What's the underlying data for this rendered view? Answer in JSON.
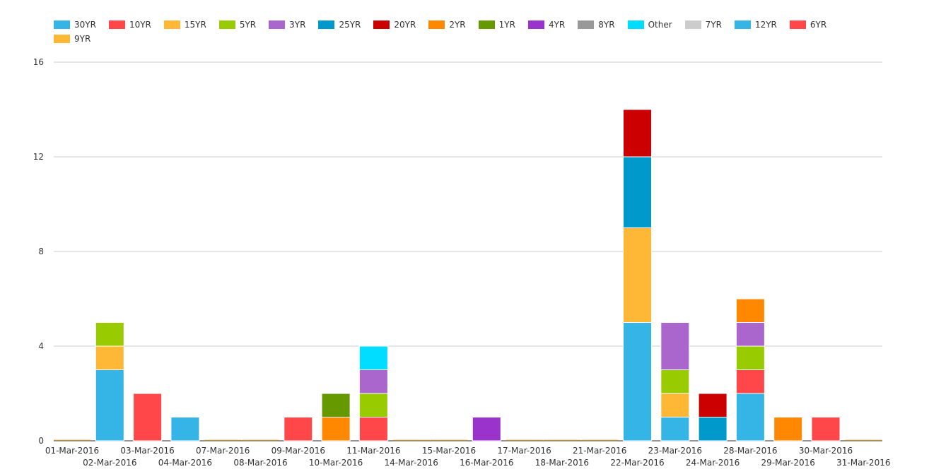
{
  "chart_data": {
    "type": "bar",
    "stacked": true,
    "legend_position": "top-left",
    "grid": true,
    "ylim": [
      0,
      16
    ],
    "y_ticks": [
      0,
      4,
      8,
      12,
      16
    ],
    "categories": [
      "01-Mar-2016",
      "02-Mar-2016",
      "03-Mar-2016",
      "04-Mar-2016",
      "07-Mar-2016",
      "08-Mar-2016",
      "09-Mar-2016",
      "10-Mar-2016",
      "11-Mar-2016",
      "14-Mar-2016",
      "15-Mar-2016",
      "16-Mar-2016",
      "17-Mar-2016",
      "18-Mar-2016",
      "21-Mar-2016",
      "22-Mar-2016",
      "23-Mar-2016",
      "24-Mar-2016",
      "28-Mar-2016",
      "29-Mar-2016",
      "30-Mar-2016",
      "31-Mar-2016"
    ],
    "series": [
      {
        "name": "30YR",
        "color": "#35b4e6",
        "values": [
          0,
          3,
          0,
          1,
          0,
          0,
          0,
          0,
          0,
          0,
          0,
          0,
          0,
          0,
          0,
          5,
          1,
          0,
          2,
          0,
          0,
          0
        ]
      },
      {
        "name": "10YR",
        "color": "#ff474a",
        "values": [
          0,
          0,
          2,
          0,
          0,
          0,
          1,
          0,
          1,
          0,
          0,
          0,
          0,
          0,
          0,
          0,
          0,
          0,
          1,
          0,
          0,
          0
        ]
      },
      {
        "name": "15YR",
        "color": "#ffb835",
        "values": [
          0,
          1,
          0,
          0,
          0,
          0,
          0,
          0,
          0,
          0,
          0,
          0,
          0,
          0,
          0,
          4,
          1,
          0,
          0,
          0,
          0,
          0
        ]
      },
      {
        "name": "5YR",
        "color": "#99cc00",
        "values": [
          0,
          1,
          0,
          0,
          0,
          0,
          0,
          0,
          1,
          0,
          0,
          0,
          0,
          0,
          0,
          0,
          1,
          0,
          1,
          0,
          0,
          0
        ]
      },
      {
        "name": "3YR",
        "color": "#aa66cc",
        "values": [
          0,
          0,
          0,
          0,
          0,
          0,
          0,
          0,
          1,
          0,
          0,
          0,
          0,
          0,
          0,
          0,
          2,
          0,
          1,
          0,
          0,
          0
        ]
      },
      {
        "name": "25YR",
        "color": "#0099cc",
        "values": [
          0,
          0,
          0,
          0,
          0,
          0,
          0,
          0,
          0,
          0,
          0,
          0,
          0,
          0,
          0,
          3,
          0,
          1,
          0,
          0,
          0,
          0
        ]
      },
      {
        "name": "20YR",
        "color": "#cc0000",
        "values": [
          0,
          0,
          0,
          0,
          0,
          0,
          0,
          0,
          0,
          0,
          0,
          0,
          0,
          0,
          0,
          2,
          0,
          1,
          0,
          0,
          0,
          0
        ]
      },
      {
        "name": "2YR",
        "color": "#ff8800",
        "values": [
          0,
          0,
          0,
          0,
          0,
          0,
          0,
          1,
          0,
          0,
          0,
          0,
          0,
          0,
          0,
          0,
          0,
          0,
          1,
          1,
          0,
          0
        ]
      },
      {
        "name": "1YR",
        "color": "#669900",
        "values": [
          0,
          0,
          0,
          0,
          0,
          0,
          0,
          1,
          0,
          0,
          0,
          0,
          0,
          0,
          0,
          0,
          0,
          0,
          0,
          0,
          0,
          0
        ]
      },
      {
        "name": "4YR",
        "color": "#9933cc",
        "values": [
          0,
          0,
          0,
          0,
          0,
          0,
          0,
          0,
          0,
          0,
          0,
          1,
          0,
          0,
          0,
          0,
          0,
          0,
          0,
          0,
          0,
          0
        ]
      },
      {
        "name": "8YR",
        "color": "#999999",
        "values": [
          0,
          0,
          0,
          0,
          0,
          0,
          0,
          0,
          0,
          0,
          0,
          0,
          0,
          0,
          0,
          0,
          0,
          0,
          0,
          0,
          0,
          0
        ]
      },
      {
        "name": "Other",
        "color": "#00ddff",
        "values": [
          0,
          0,
          0,
          0,
          0,
          0,
          0,
          0,
          1,
          0,
          0,
          0,
          0,
          0,
          0,
          0,
          0,
          0,
          0,
          0,
          0,
          0
        ]
      },
      {
        "name": "7YR",
        "color": "#cccccc",
        "values": [
          0,
          0,
          0,
          0,
          0,
          0,
          0,
          0,
          0,
          0,
          0,
          0,
          0,
          0,
          0,
          0,
          0,
          0,
          0,
          0,
          0,
          0
        ]
      },
      {
        "name": "12YR",
        "color": "#35b4e6",
        "values": [
          0,
          0,
          0,
          0,
          0,
          0,
          0,
          0,
          0,
          0,
          0,
          0,
          0,
          0,
          0,
          0,
          0,
          0,
          0,
          0,
          0,
          0
        ]
      },
      {
        "name": "6YR",
        "color": "#ff474a",
        "values": [
          0,
          0,
          0,
          0,
          0,
          0,
          0,
          0,
          0,
          0,
          0,
          0,
          0,
          0,
          0,
          0,
          0,
          0,
          0,
          0,
          1,
          0
        ]
      },
      {
        "name": "9YR",
        "color": "#ffb835",
        "values": [
          0,
          0,
          0,
          0,
          0,
          0,
          0,
          0,
          0,
          0,
          0,
          0,
          0,
          0,
          0,
          0,
          0,
          0,
          0,
          0,
          0,
          0
        ]
      }
    ]
  }
}
